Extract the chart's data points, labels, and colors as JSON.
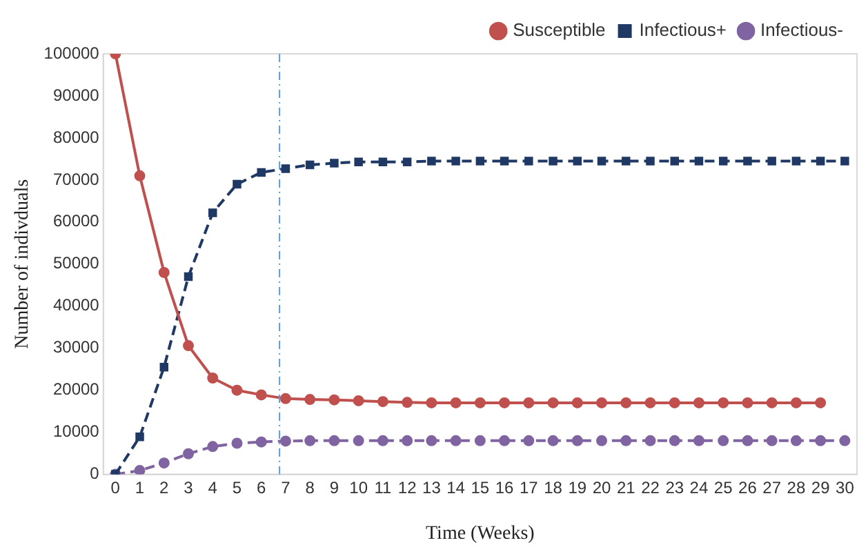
{
  "chart_data": {
    "type": "line",
    "xlabel": "Time (Weeks)",
    "ylabel": "Number of indivduals",
    "x": [
      0,
      1,
      2,
      3,
      4,
      5,
      6,
      7,
      8,
      9,
      10,
      11,
      12,
      13,
      14,
      15,
      16,
      17,
      18,
      19,
      20,
      21,
      22,
      23,
      24,
      25,
      26,
      27,
      28,
      29,
      30
    ],
    "xlim": [
      -0.5,
      30.5
    ],
    "xticks": [
      0,
      1,
      2,
      3,
      4,
      5,
      6,
      7,
      8,
      9,
      10,
      11,
      12,
      13,
      14,
      15,
      16,
      17,
      18,
      19,
      20,
      21,
      22,
      23,
      24,
      25,
      26,
      27,
      28,
      29,
      30
    ],
    "ylim": [
      0,
      100000
    ],
    "yticks": [
      0,
      10000,
      20000,
      30000,
      40000,
      50000,
      60000,
      70000,
      80000,
      90000,
      100000
    ],
    "series": [
      {
        "name": "Susceptible",
        "color": "#c0504d",
        "marker": "circle",
        "line_style": "solid",
        "values": [
          100000,
          71000,
          48000,
          30600,
          22900,
          20000,
          18900,
          18000,
          17800,
          17700,
          17500,
          17300,
          17100,
          17000,
          17000,
          17000,
          17000,
          17000,
          17000,
          17000,
          17000,
          17000,
          17000,
          17000,
          17000,
          17000,
          17000,
          17000,
          17000,
          17000,
          null
        ]
      },
      {
        "name": "Infectious+",
        "color": "#1f3864",
        "marker": "square",
        "line_style": "dashed",
        "values": [
          0,
          8900,
          25500,
          47000,
          62200,
          69000,
          71800,
          72700,
          73600,
          74000,
          74300,
          74300,
          74300,
          74500,
          74500,
          74500,
          74500,
          74500,
          74500,
          74500,
          74500,
          74500,
          74500,
          74500,
          74500,
          74500,
          74500,
          74500,
          74500,
          74500,
          74500
        ]
      },
      {
        "name": "Infectious-",
        "color": "#8064a2",
        "marker": "circle",
        "line_style": "dashed",
        "values": [
          0,
          900,
          2700,
          4900,
          6600,
          7400,
          7700,
          7900,
          8000,
          8000,
          8000,
          8000,
          8000,
          8000,
          8000,
          8000,
          8000,
          8000,
          8000,
          8000,
          8000,
          8000,
          8000,
          8000,
          8000,
          8000,
          8000,
          8000,
          8000,
          8000,
          8000
        ]
      }
    ],
    "ref_lines": [
      {
        "axis": "x",
        "value": 6.75,
        "color": "#5b9bd5",
        "line_style": "dashdot"
      }
    ],
    "grid": false,
    "legend": "top right"
  }
}
